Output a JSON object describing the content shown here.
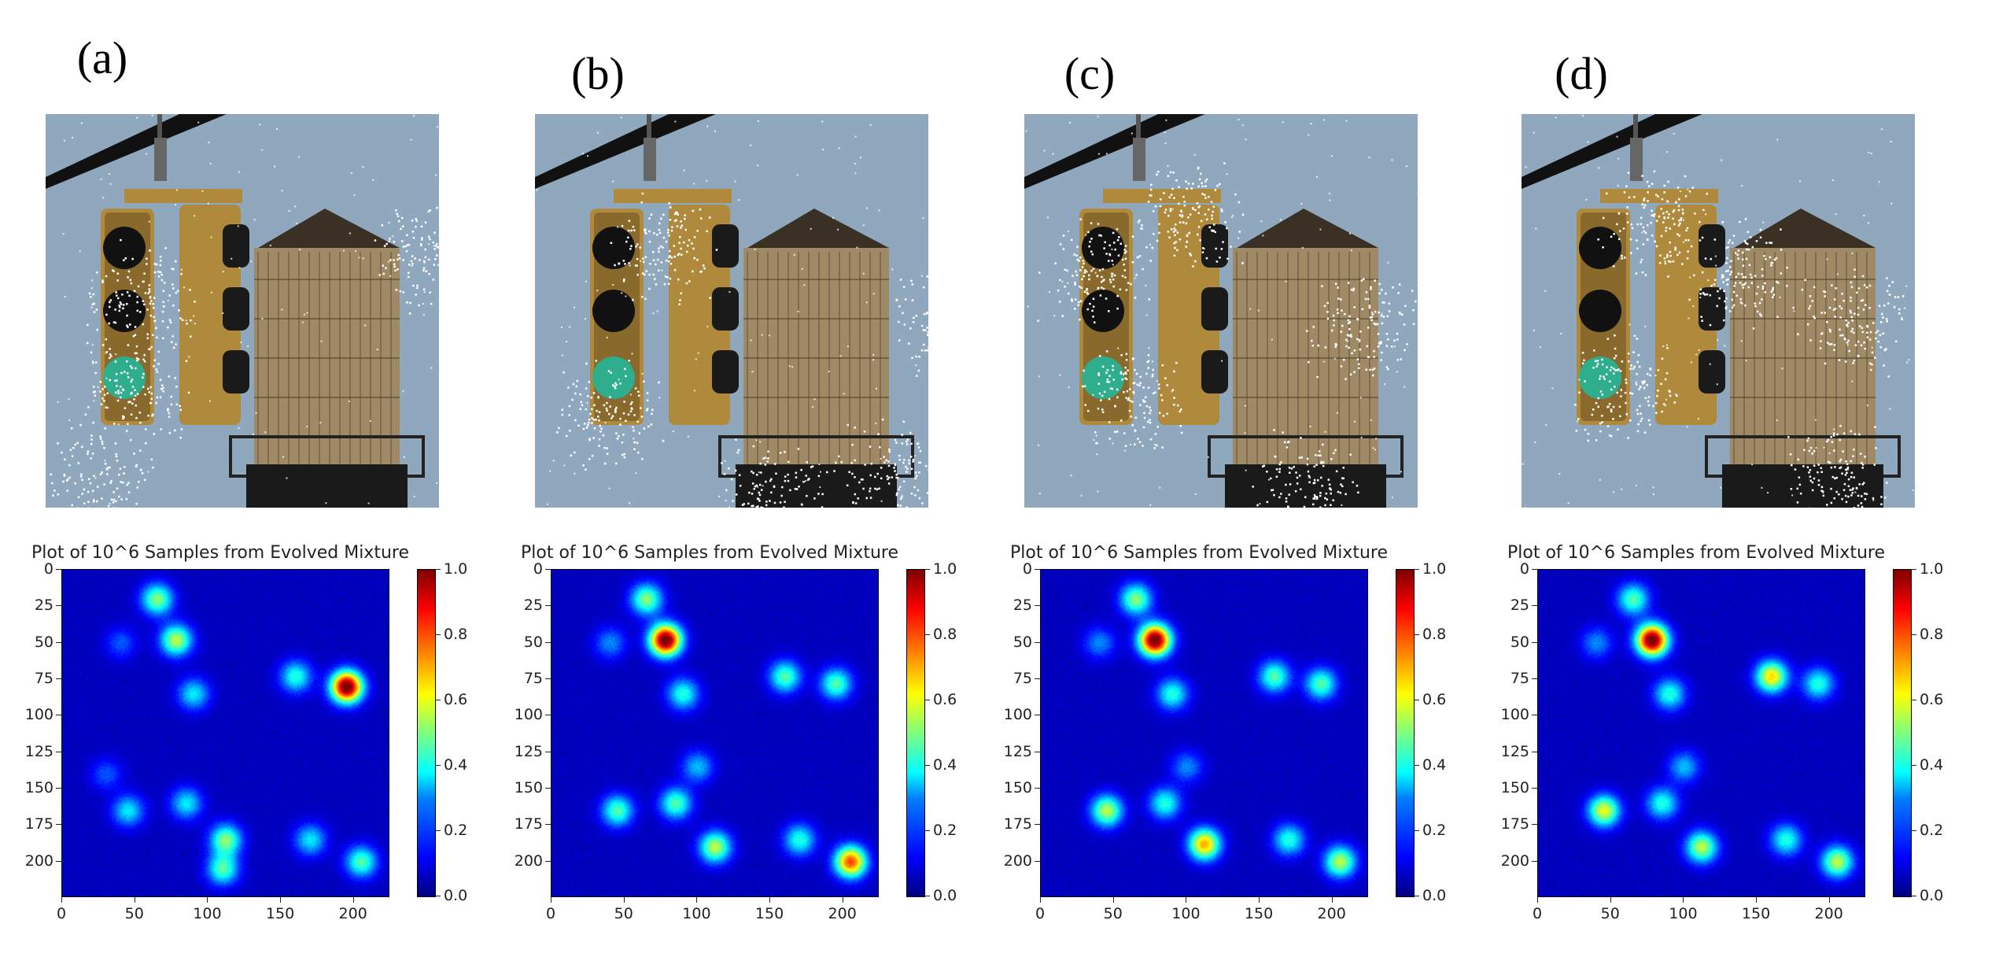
{
  "panels": [
    {
      "label": "(a)",
      "heatmap_title": "Plot of 10^6 Samples from Evolved Mixture"
    },
    {
      "label": "(b)",
      "heatmap_title": "Plot of 10^6 Samples from Evolved Mixture"
    },
    {
      "label": "(c)",
      "heatmap_title": "Plot of 10^6 Samples from Evolved Mixture"
    },
    {
      "label": "(d)",
      "heatmap_title": "Plot of 10^6 Samples from Evolved Mixture"
    }
  ],
  "colors": {
    "sky": "#8fa8bd",
    "tower": "#a08a66",
    "signal": "#b08a3c",
    "green_light": "#2fae8e"
  },
  "chart_data": [
    {
      "type": "heatmap",
      "title": "Plot of 10^6 Samples from Evolved Mixture",
      "xlim": [
        0,
        224
      ],
      "ylim": [
        224,
        0
      ],
      "xticks": [
        "0",
        "50",
        "100",
        "150",
        "200"
      ],
      "yticks": [
        "0",
        "25",
        "50",
        "75",
        "100",
        "125",
        "150",
        "175",
        "200"
      ],
      "colorbar_ticks": [
        "0.0",
        "0.2",
        "0.4",
        "0.6",
        "0.8",
        "1.0"
      ],
      "colorbar_range": [
        0,
        1
      ],
      "peaks": [
        {
          "x": 65,
          "y": 20,
          "v": 0.45
        },
        {
          "x": 78,
          "y": 48,
          "v": 0.5
        },
        {
          "x": 195,
          "y": 80,
          "v": 1.0
        },
        {
          "x": 160,
          "y": 73,
          "v": 0.35
        },
        {
          "x": 90,
          "y": 85,
          "v": 0.3
        },
        {
          "x": 45,
          "y": 165,
          "v": 0.3
        },
        {
          "x": 85,
          "y": 160,
          "v": 0.3
        },
        {
          "x": 112,
          "y": 185,
          "v": 0.45
        },
        {
          "x": 110,
          "y": 205,
          "v": 0.4
        },
        {
          "x": 170,
          "y": 185,
          "v": 0.3
        },
        {
          "x": 205,
          "y": 200,
          "v": 0.4
        },
        {
          "x": 40,
          "y": 50,
          "v": 0.15
        },
        {
          "x": 30,
          "y": 140,
          "v": 0.15
        }
      ]
    },
    {
      "type": "heatmap",
      "title": "Plot of 10^6 Samples from Evolved Mixture",
      "xlim": [
        0,
        224
      ],
      "ylim": [
        224,
        0
      ],
      "xticks": [
        "0",
        "50",
        "100",
        "150",
        "200"
      ],
      "yticks": [
        "0",
        "25",
        "50",
        "75",
        "100",
        "125",
        "150",
        "175",
        "200"
      ],
      "colorbar_ticks": [
        "0.0",
        "0.2",
        "0.4",
        "0.6",
        "0.8",
        "1.0"
      ],
      "colorbar_range": [
        0,
        1
      ],
      "peaks": [
        {
          "x": 65,
          "y": 20,
          "v": 0.45
        },
        {
          "x": 78,
          "y": 48,
          "v": 1.0
        },
        {
          "x": 160,
          "y": 73,
          "v": 0.4
        },
        {
          "x": 195,
          "y": 78,
          "v": 0.4
        },
        {
          "x": 90,
          "y": 85,
          "v": 0.35
        },
        {
          "x": 45,
          "y": 165,
          "v": 0.4
        },
        {
          "x": 85,
          "y": 160,
          "v": 0.4
        },
        {
          "x": 112,
          "y": 190,
          "v": 0.5
        },
        {
          "x": 170,
          "y": 185,
          "v": 0.35
        },
        {
          "x": 205,
          "y": 200,
          "v": 0.75
        },
        {
          "x": 100,
          "y": 135,
          "v": 0.25
        },
        {
          "x": 40,
          "y": 50,
          "v": 0.2
        }
      ]
    },
    {
      "type": "heatmap",
      "title": "Plot of 10^6 Samples from Evolved Mixture",
      "xlim": [
        0,
        224
      ],
      "ylim": [
        224,
        0
      ],
      "xticks": [
        "0",
        "50",
        "100",
        "150",
        "200"
      ],
      "yticks": [
        "0",
        "25",
        "50",
        "75",
        "100",
        "125",
        "150",
        "175",
        "200"
      ],
      "colorbar_ticks": [
        "0.0",
        "0.2",
        "0.4",
        "0.6",
        "0.8",
        "1.0"
      ],
      "colorbar_range": [
        0,
        1
      ],
      "peaks": [
        {
          "x": 65,
          "y": 20,
          "v": 0.45
        },
        {
          "x": 78,
          "y": 48,
          "v": 1.0
        },
        {
          "x": 160,
          "y": 73,
          "v": 0.4
        },
        {
          "x": 192,
          "y": 78,
          "v": 0.4
        },
        {
          "x": 90,
          "y": 85,
          "v": 0.35
        },
        {
          "x": 45,
          "y": 165,
          "v": 0.5
        },
        {
          "x": 85,
          "y": 160,
          "v": 0.35
        },
        {
          "x": 112,
          "y": 188,
          "v": 0.65
        },
        {
          "x": 170,
          "y": 185,
          "v": 0.35
        },
        {
          "x": 205,
          "y": 200,
          "v": 0.5
        },
        {
          "x": 100,
          "y": 135,
          "v": 0.2
        },
        {
          "x": 40,
          "y": 50,
          "v": 0.2
        }
      ]
    },
    {
      "type": "heatmap",
      "title": "Plot of 10^6 Samples from Evolved Mixture",
      "xlim": [
        0,
        224
      ],
      "ylim": [
        224,
        0
      ],
      "xticks": [
        "0",
        "50",
        "100",
        "150",
        "200"
      ],
      "yticks": [
        "0",
        "25",
        "50",
        "75",
        "100",
        "125",
        "150",
        "175",
        "200"
      ],
      "colorbar_ticks": [
        "0.0",
        "0.2",
        "0.4",
        "0.6",
        "0.8",
        "1.0"
      ],
      "colorbar_range": [
        0,
        1
      ],
      "peaks": [
        {
          "x": 65,
          "y": 20,
          "v": 0.4
        },
        {
          "x": 78,
          "y": 48,
          "v": 1.0
        },
        {
          "x": 160,
          "y": 73,
          "v": 0.6
        },
        {
          "x": 192,
          "y": 78,
          "v": 0.35
        },
        {
          "x": 90,
          "y": 85,
          "v": 0.35
        },
        {
          "x": 45,
          "y": 165,
          "v": 0.55
        },
        {
          "x": 85,
          "y": 160,
          "v": 0.35
        },
        {
          "x": 112,
          "y": 190,
          "v": 0.5
        },
        {
          "x": 170,
          "y": 185,
          "v": 0.35
        },
        {
          "x": 205,
          "y": 200,
          "v": 0.5
        },
        {
          "x": 100,
          "y": 135,
          "v": 0.25
        },
        {
          "x": 40,
          "y": 50,
          "v": 0.2
        }
      ]
    }
  ]
}
